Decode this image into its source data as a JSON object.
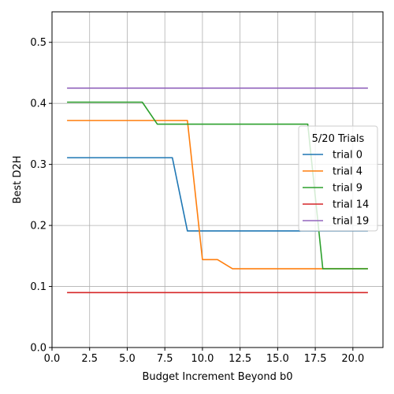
{
  "chart_data": {
    "type": "line",
    "title": "",
    "xlabel": "Budget Increment Beyond b0",
    "ylabel": "Best D2H",
    "xlim": [
      0,
      22
    ],
    "ylim": [
      0,
      0.55
    ],
    "xticks": [
      0,
      2.5,
      5,
      7.5,
      10,
      12.5,
      15,
      17.5,
      20
    ],
    "xtick_labels": [
      "0.0",
      "2.5",
      "5.0",
      "7.5",
      "10.0",
      "12.5",
      "15.0",
      "17.5",
      "20.0"
    ],
    "yticks": [
      0,
      0.1,
      0.2,
      0.3,
      0.4,
      0.5
    ],
    "ytick_labels": [
      "0.0",
      "0.1",
      "0.2",
      "0.3",
      "0.4",
      "0.5"
    ],
    "grid": true,
    "legend": {
      "title": "5/20 Trials",
      "placement": "center-right"
    },
    "series": [
      {
        "name": "trial 0",
        "color": "#1f77b4",
        "x": [
          1,
          8,
          9,
          21
        ],
        "y": [
          0.311,
          0.311,
          0.191,
          0.191
        ]
      },
      {
        "name": "trial 4",
        "color": "#ff7f0e",
        "x": [
          1,
          9,
          10,
          11,
          12,
          21
        ],
        "y": [
          0.372,
          0.372,
          0.144,
          0.144,
          0.129,
          0.129
        ]
      },
      {
        "name": "trial 9",
        "color": "#2ca02c",
        "x": [
          1,
          6,
          7,
          17,
          18,
          21
        ],
        "y": [
          0.402,
          0.402,
          0.366,
          0.366,
          0.129,
          0.129
        ]
      },
      {
        "name": "trial 14",
        "color": "#d62728",
        "x": [
          1,
          21
        ],
        "y": [
          0.09,
          0.09
        ]
      },
      {
        "name": "trial 19",
        "color": "#9467bd",
        "x": [
          1,
          21
        ],
        "y": [
          0.425,
          0.425
        ]
      }
    ]
  }
}
